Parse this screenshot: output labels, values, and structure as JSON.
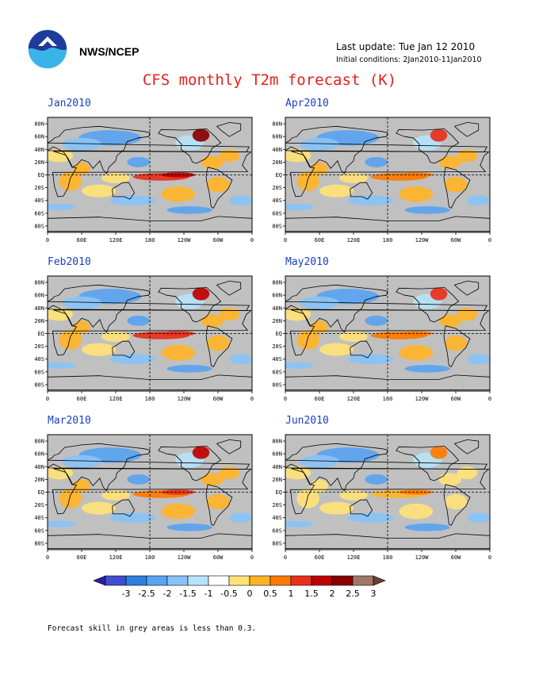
{
  "header": {
    "agency": "NWS/NCEP",
    "last_update": "Last update: Tue Jan 12 2010",
    "initial_conditions": "Initial conditions: 2Jan2010-11Jan2010"
  },
  "title": "CFS monthly T2m forecast (K)",
  "axes": {
    "lat_ticks": [
      "80N",
      "60N",
      "40N",
      "20N",
      "EQ",
      "20S",
      "40S",
      "60S",
      "80S"
    ],
    "lon_ticks": [
      "0",
      "60E",
      "120E",
      "180",
      "120W",
      "60W",
      "0"
    ]
  },
  "panels": [
    {
      "month": "Jan2010",
      "warm_level": 1.0
    },
    {
      "month": "Feb2010",
      "warm_level": 0.85
    },
    {
      "month": "Mar2010",
      "warm_level": 0.7
    },
    {
      "month": "Apr2010",
      "warm_level": 0.55
    },
    {
      "month": "May2010",
      "warm_level": 0.5
    },
    {
      "month": "Jun2010",
      "warm_level": 0.45
    }
  ],
  "colorbar": {
    "labels": [
      "-3",
      "-2.5",
      "-2",
      "-1.5",
      "-1",
      "-0.5",
      "0",
      "0.5",
      "1",
      "1.5",
      "2",
      "2.5",
      "3"
    ],
    "colors": [
      "#2c1ea8",
      "#3d4fd0",
      "#2f7fe0",
      "#5aa3f0",
      "#88c3f7",
      "#b6e3f9",
      "#ffffff",
      "#ffe278",
      "#ffb428",
      "#ff7a00",
      "#e8301c",
      "#c00000",
      "#8a0000",
      "#a07868",
      "#6b4030"
    ]
  },
  "colors": {
    "land_grey": "#c0c0c0",
    "title_red": "#e8201c",
    "panel_title_blue": "#1a3fc4"
  },
  "footnote": "Forecast skill in grey areas is less than 0.3."
}
